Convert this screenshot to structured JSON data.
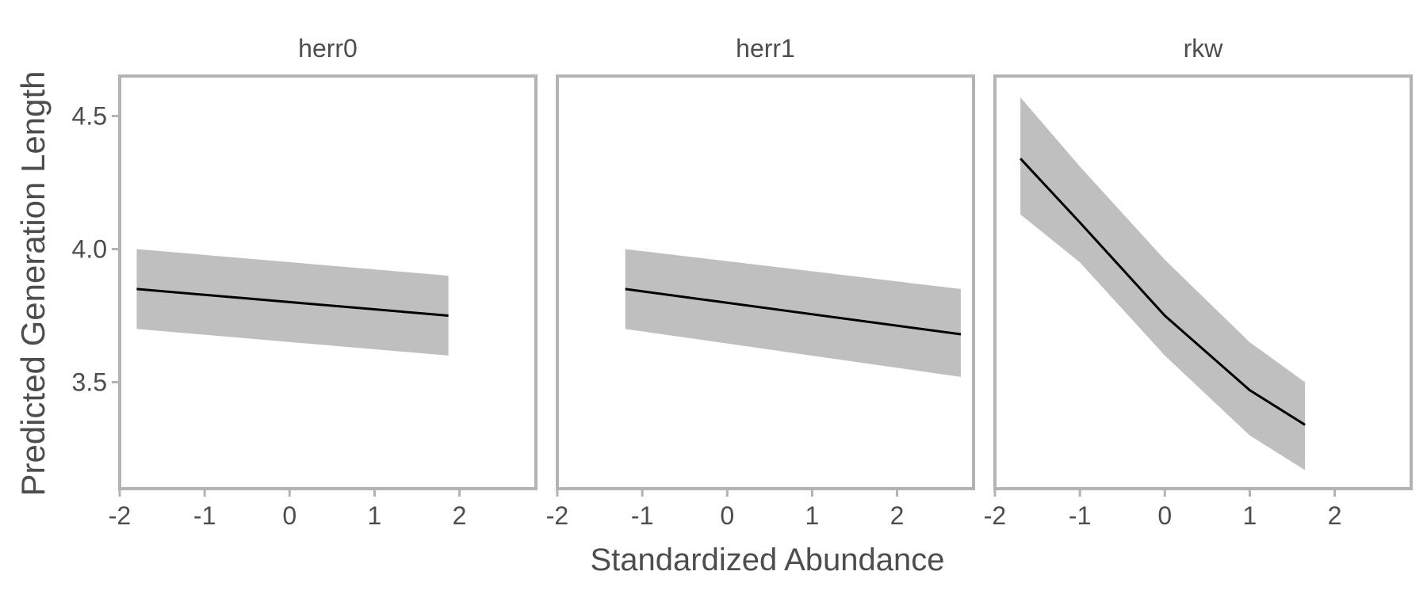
{
  "chart_data": {
    "type": "line",
    "ylabel": "Predicted Generation Length",
    "xlabel": "Standardized Abundance",
    "xlim": [
      -2,
      2.9
    ],
    "ylim": [
      3.1,
      4.65
    ],
    "xticks": [
      -2,
      -1,
      0,
      1,
      2
    ],
    "xtick_labels": [
      "-2",
      "-1",
      "0",
      "1",
      "2"
    ],
    "yticks": [
      3.5,
      4.0,
      4.5
    ],
    "ytick_labels": [
      "3.5",
      "4.0",
      "4.5"
    ],
    "grid": false,
    "colors": {
      "line": "#000000",
      "ribbon": "#bfbfbf",
      "frame": "#b3b3b3",
      "text": "#4d4d4d"
    },
    "panels": [
      {
        "name": "herr0",
        "x": [
          -1.8,
          1.87
        ],
        "y": [
          3.85,
          3.75
        ],
        "lower": [
          3.7,
          3.6
        ],
        "upper": [
          4.0,
          3.9
        ]
      },
      {
        "name": "herr1",
        "x": [
          -1.2,
          2.75
        ],
        "y": [
          3.85,
          3.68
        ],
        "lower": [
          3.7,
          3.52
        ],
        "upper": [
          4.0,
          3.85
        ]
      },
      {
        "name": "rkw",
        "x": [
          -1.7,
          -1.0,
          0.0,
          1.0,
          1.65
        ],
        "y": [
          4.34,
          4.1,
          3.75,
          3.47,
          3.34
        ],
        "lower": [
          4.13,
          3.95,
          3.6,
          3.3,
          3.17
        ],
        "upper": [
          4.57,
          4.31,
          3.96,
          3.65,
          3.5
        ]
      }
    ]
  }
}
